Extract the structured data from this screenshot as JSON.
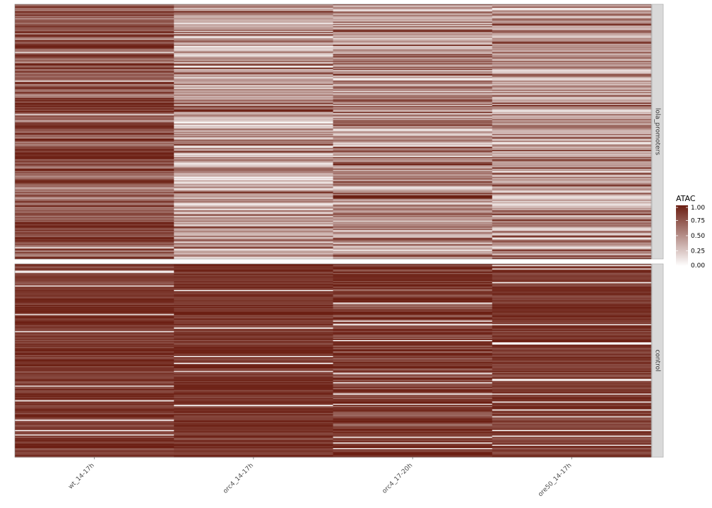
{
  "chart_data": {
    "type": "heatmap",
    "columns": [
      "wt_14-17h",
      "orc4_14-17h",
      "orc4_17-20h",
      "ore50_14-17h"
    ],
    "facets": [
      {
        "label": "lola_promoters",
        "rows": 220,
        "column_mean_values": [
          0.72,
          0.42,
          0.5,
          0.45
        ],
        "column_spread": [
          0.3,
          0.35,
          0.4,
          0.35
        ]
      },
      {
        "label": "control",
        "rows": 170,
        "column_mean_values": [
          0.88,
          0.9,
          0.85,
          0.88
        ],
        "column_spread": [
          0.18,
          0.15,
          0.25,
          0.16
        ]
      }
    ],
    "value_range": [
      0,
      1
    ],
    "colors": {
      "low": "#ffffff",
      "high": "#6b1e12"
    },
    "legend": {
      "title": "ATAC",
      "breaks": [
        1.0,
        0.75,
        0.5,
        0.25,
        0.0
      ],
      "labels": [
        "1.00",
        "0.75",
        "0.50",
        "0.25",
        "0.00"
      ],
      "position": "right"
    },
    "grid": false
  },
  "strip_color": "#d9d9d9"
}
